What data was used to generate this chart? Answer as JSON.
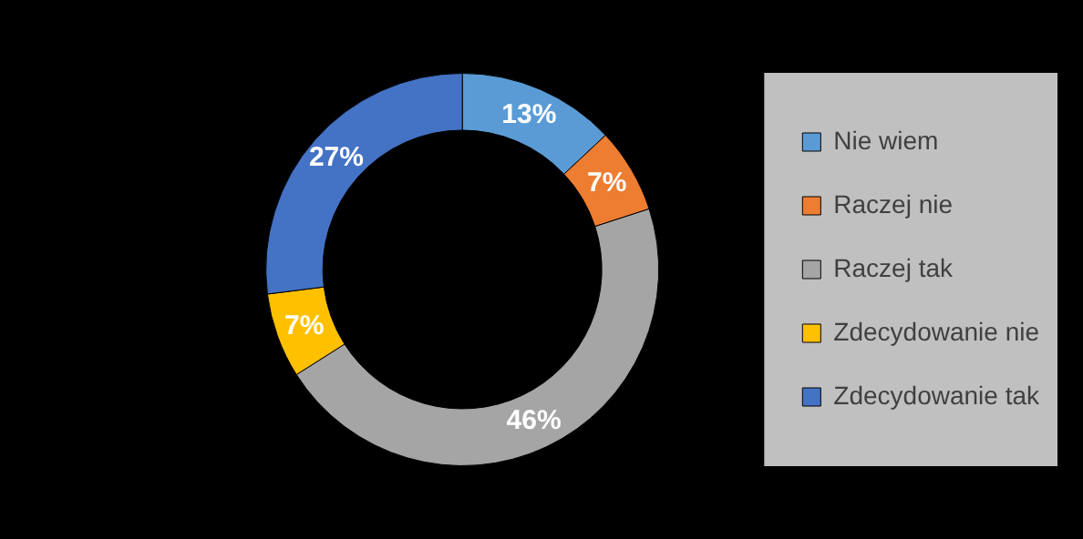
{
  "chart_data": {
    "type": "donut",
    "categories": [
      "Nie wiem",
      "Raczej nie",
      "Raczej tak",
      "Zdecydowanie nie",
      "Zdecydowanie tak"
    ],
    "values": [
      13,
      7,
      46,
      7,
      27
    ],
    "colors": [
      "#5b9bd5",
      "#ed7d31",
      "#a5a5a5",
      "#ffc000",
      "#4472c4"
    ],
    "value_labels": [
      "13%",
      "7%",
      "46%",
      "7%",
      "27%"
    ],
    "legend": "right"
  }
}
